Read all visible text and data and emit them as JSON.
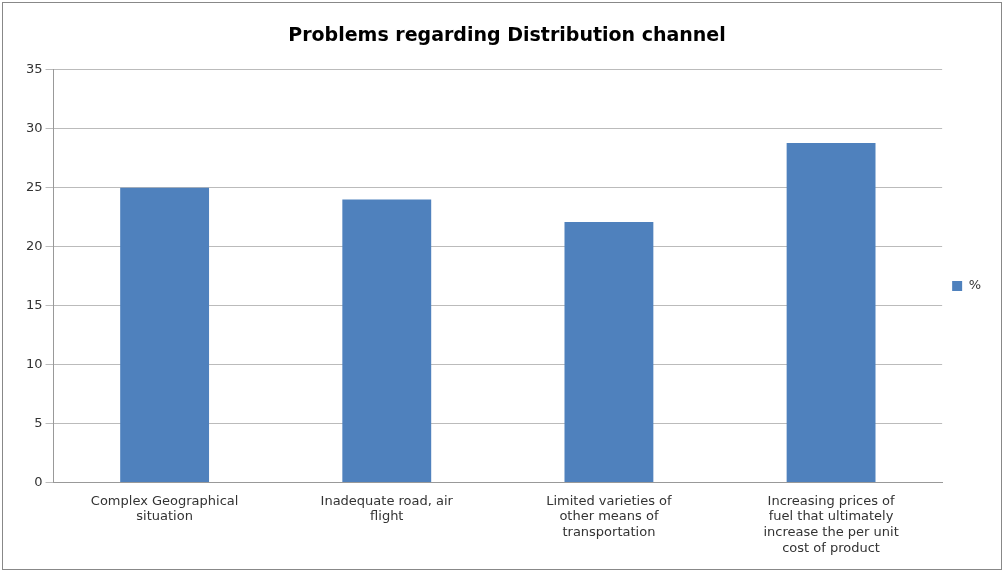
{
  "chart_data": {
    "type": "bar",
    "title": "Problems regarding Distribution channel",
    "categories": [
      "Complex Geographical situation",
      "Inadequate road, air flight",
      "Limited varieties of other means of transportation",
      "Increasing prices of fuel that ultimately increase the per unit cost of product"
    ],
    "series": [
      {
        "name": "%",
        "color": "#4f81bd",
        "values": [
          25,
          24,
          22.1,
          28.8
        ]
      }
    ],
    "ylim": [
      0,
      35
    ],
    "yticks": [
      0,
      5,
      10,
      15,
      20,
      25,
      30,
      35
    ],
    "grid": "y",
    "legend": "right"
  }
}
